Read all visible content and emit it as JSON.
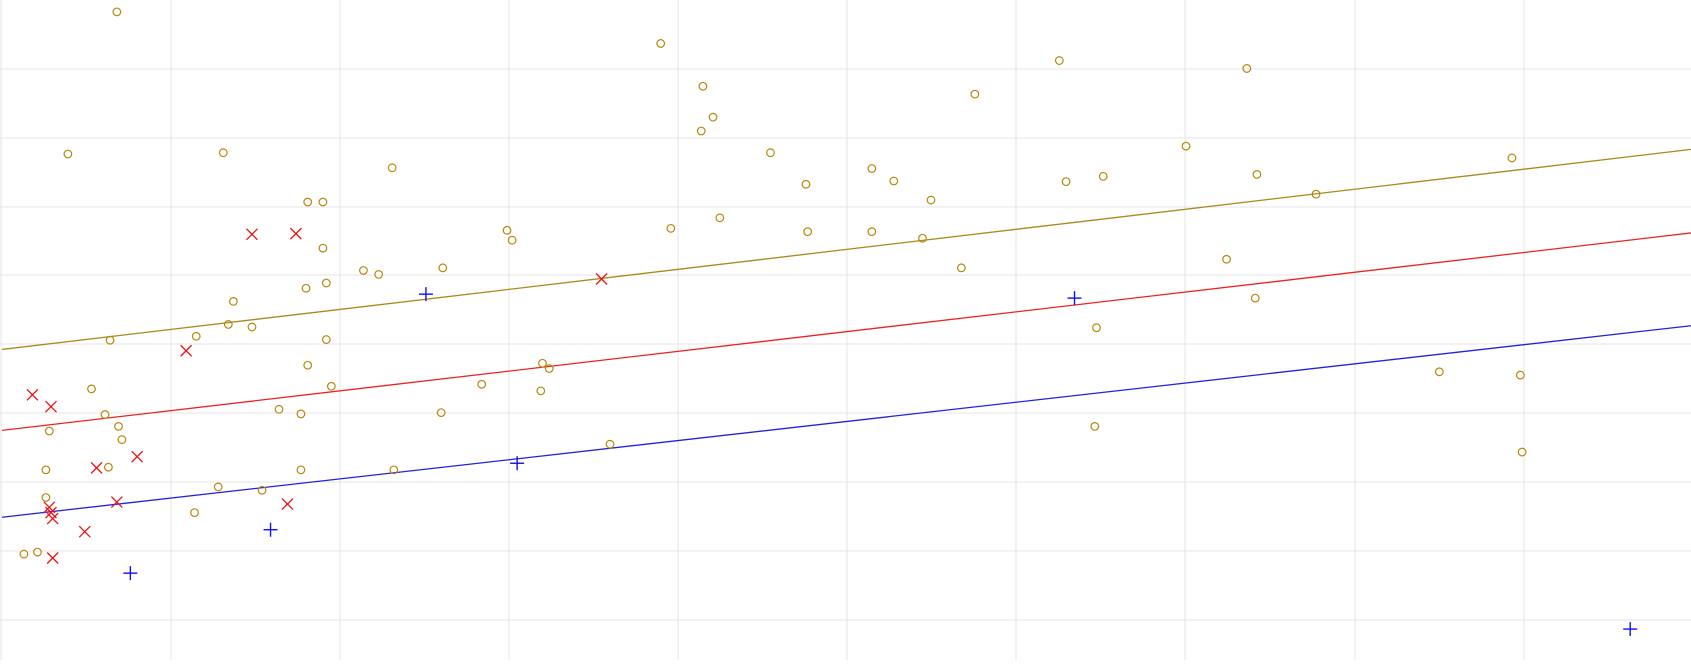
{
  "chart_data": {
    "type": "scatter",
    "title": "",
    "xlabel": "",
    "ylabel": "",
    "grid": true,
    "xlim": [
      0,
      10
    ],
    "ylim": [
      0,
      10
    ],
    "series": [
      {
        "marker": "circle",
        "color": "#b8860b",
        "points": [
          [
            0.68,
            9.85
          ],
          [
            0.39,
            7.69
          ],
          [
            1.31,
            7.71
          ],
          [
            2.31,
            7.48
          ],
          [
            1.81,
            6.96
          ],
          [
            1.9,
            6.96
          ],
          [
            1.9,
            6.26
          ],
          [
            1.8,
            5.65
          ],
          [
            1.92,
            5.73
          ],
          [
            2.14,
            5.92
          ],
          [
            2.23,
            5.86
          ],
          [
            2.61,
            5.96
          ],
          [
            3.02,
            6.38
          ],
          [
            2.99,
            6.53
          ],
          [
            1.37,
            5.45
          ],
          [
            1.34,
            5.1
          ],
          [
            1.48,
            5.06
          ],
          [
            1.15,
            4.92
          ],
          [
            0.64,
            4.86
          ],
          [
            0.53,
            4.12
          ],
          [
            0.61,
            3.73
          ],
          [
            0.28,
            3.48
          ],
          [
            0.69,
            3.55
          ],
          [
            0.71,
            3.35
          ],
          [
            0.26,
            2.89
          ],
          [
            0.63,
            2.93
          ],
          [
            0.26,
            2.47
          ],
          [
            0.13,
            1.61
          ],
          [
            0.21,
            1.64
          ],
          [
            1.14,
            2.24
          ],
          [
            1.28,
            2.63
          ],
          [
            1.54,
            2.58
          ],
          [
            1.77,
            2.89
          ],
          [
            1.64,
            3.81
          ],
          [
            1.77,
            3.74
          ],
          [
            1.81,
            4.48
          ],
          [
            1.95,
            4.16
          ],
          [
            1.92,
            4.87
          ],
          [
            2.32,
            2.89
          ],
          [
            2.84,
            4.19
          ],
          [
            2.6,
            3.76
          ],
          [
            3.19,
            4.09
          ],
          [
            3.2,
            4.51
          ],
          [
            3.24,
            4.43
          ],
          [
            3.6,
            3.28
          ],
          [
            3.9,
            9.37
          ],
          [
            3.96,
            6.56
          ],
          [
            4.15,
            8.72
          ],
          [
            4.14,
            8.04
          ],
          [
            4.21,
            8.25
          ],
          [
            4.25,
            6.72
          ],
          [
            4.55,
            7.71
          ],
          [
            4.76,
            7.23
          ],
          [
            4.77,
            6.51
          ],
          [
            5.15,
            7.47
          ],
          [
            5.15,
            6.51
          ],
          [
            5.28,
            7.28
          ],
          [
            5.45,
            6.41
          ],
          [
            5.5,
            6.99
          ],
          [
            5.68,
            5.96
          ],
          [
            5.76,
            8.6
          ],
          [
            6.26,
            9.11
          ],
          [
            6.3,
            7.27
          ],
          [
            6.52,
            7.35
          ],
          [
            6.48,
            5.05
          ],
          [
            6.47,
            3.55
          ],
          [
            7.01,
            7.81
          ],
          [
            7.25,
            6.09
          ],
          [
            7.37,
            8.99
          ],
          [
            7.43,
            7.38
          ],
          [
            7.42,
            5.5
          ],
          [
            7.78,
            7.08
          ],
          [
            8.51,
            4.38
          ],
          [
            8.94,
            7.63
          ],
          [
            8.99,
            4.33
          ],
          [
            9.0,
            3.16
          ]
        ]
      },
      {
        "marker": "x",
        "color": "#ee1111",
        "points": [
          [
            1.48,
            6.47
          ],
          [
            1.74,
            6.48
          ],
          [
            3.55,
            5.79
          ],
          [
            1.09,
            4.7
          ],
          [
            0.18,
            4.03
          ],
          [
            0.29,
            3.85
          ],
          [
            0.56,
            2.92
          ],
          [
            0.8,
            3.09
          ],
          [
            0.68,
            2.4
          ],
          [
            0.28,
            2.32
          ],
          [
            0.29,
            2.24
          ],
          [
            0.3,
            2.15
          ],
          [
            0.49,
            1.95
          ],
          [
            0.3,
            1.55
          ],
          [
            1.69,
            2.37
          ]
        ]
      },
      {
        "marker": "plus",
        "color": "#1111ee",
        "points": [
          [
            2.51,
            5.56
          ],
          [
            6.35,
            5.5
          ],
          [
            3.05,
            2.99
          ],
          [
            1.59,
            1.98
          ],
          [
            0.76,
            1.32
          ],
          [
            9.64,
            0.47
          ]
        ]
      }
    ],
    "lines": [
      {
        "color": "#a88a1c",
        "x": [
          0,
          10
        ],
        "y": [
          4.72,
          7.76
        ]
      },
      {
        "color": "#ee2222",
        "x": [
          0,
          10
        ],
        "y": [
          3.49,
          6.49
        ]
      },
      {
        "color": "#2222dd",
        "x": [
          0,
          10
        ],
        "y": [
          2.17,
          5.08
        ]
      }
    ]
  }
}
